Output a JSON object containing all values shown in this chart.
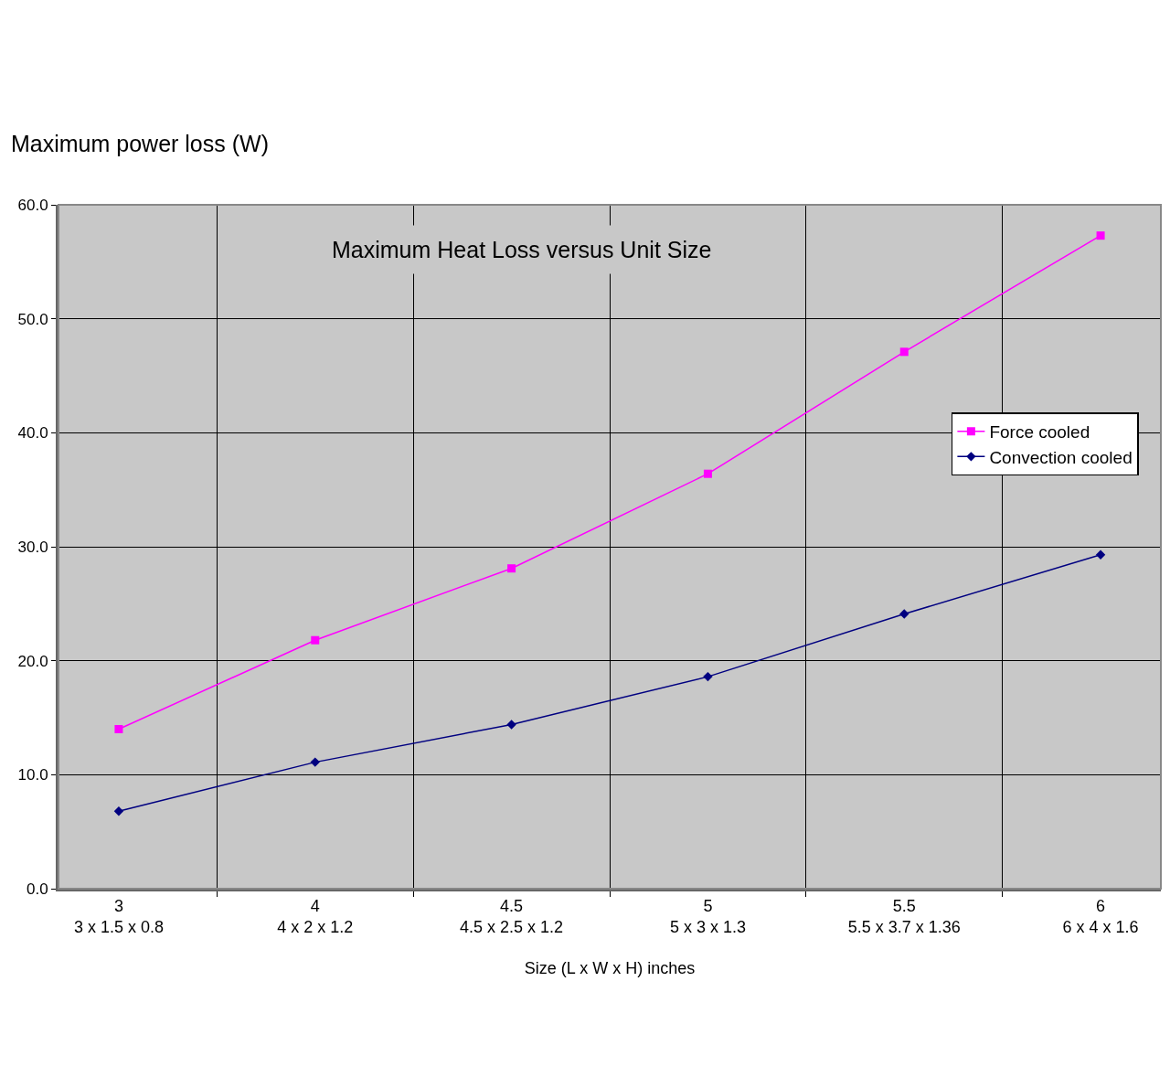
{
  "chart_data": {
    "type": "line",
    "title": "Maximum Heat Loss versus Unit Size",
    "ylabel": "Maximum power loss (W)",
    "xlabel": "Size (L x W x H) inches",
    "categories": [
      "3\n3 x 1.5 x 0.8",
      "4\n4 x 2 x 1.2",
      "4.5\n4.5 x 2.5 x 1.2",
      "5\n5 x 3 x 1.3",
      "5.5\n5.5 x 3.7 x 1.36",
      "6\n6 x 4 x 1.6"
    ],
    "series": [
      {
        "name": "Force cooled",
        "color": "#ff00ff",
        "marker": "square",
        "values": [
          14.0,
          21.8,
          28.1,
          36.4,
          47.1,
          57.3
        ]
      },
      {
        "name": "Convection cooled",
        "color": "#000080",
        "marker": "diamond",
        "values": [
          6.8,
          11.1,
          14.4,
          18.6,
          24.1,
          29.3
        ]
      }
    ],
    "ylim": [
      0,
      60
    ],
    "yticks": [
      {
        "value": 0,
        "label": "0.0"
      },
      {
        "value": 10,
        "label": "10.0"
      },
      {
        "value": 20,
        "label": "20.0"
      },
      {
        "value": 30,
        "label": "30.0"
      },
      {
        "value": 40,
        "label": "40.0"
      },
      {
        "value": 50,
        "label": "50.0"
      },
      {
        "value": 60,
        "label": "60.0"
      }
    ],
    "grid": true,
    "legend": "right",
    "line_style": "solid"
  }
}
